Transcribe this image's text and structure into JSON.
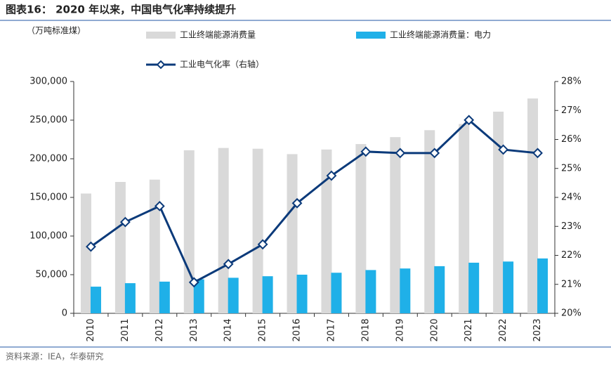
{
  "chart_data": {
    "type": "bar",
    "title": "图表16： 2020 年以来，中国电气化率持续提升",
    "y_label": "（万吨标准煤）",
    "source": "资料来源：IEA，华泰研究",
    "categories": [
      "2010",
      "2011",
      "2012",
      "2013",
      "2014",
      "2015",
      "2016",
      "2017",
      "2018",
      "2019",
      "2020",
      "2021",
      "2022",
      "2023"
    ],
    "series": [
      {
        "name": "工业终端能源消费量",
        "color": "#d9d9d9",
        "values": [
          155000,
          170000,
          173000,
          211000,
          214000,
          213000,
          206000,
          212000,
          219000,
          228000,
          237000,
          245000,
          261000,
          278000
        ]
      },
      {
        "name": "工业终端能源消费量：电力",
        "color": "#1fb0e8",
        "values": [
          34500,
          39000,
          41000,
          44000,
          46000,
          48000,
          50000,
          52500,
          56000,
          58000,
          61000,
          65500,
          67000,
          71000
        ]
      },
      {
        "name": "工业电气化率（右轴）",
        "color": "#0b3a7a",
        "axis": "y2",
        "values": [
          22.3,
          23.15,
          23.7,
          21.07,
          21.7,
          22.38,
          23.8,
          24.75,
          25.58,
          25.53,
          25.53,
          26.67,
          25.65,
          25.53
        ]
      }
    ],
    "ylim": [
      0,
      300000
    ],
    "yticks": [
      {
        "value": 0,
        "label": "0"
      },
      {
        "value": 50000,
        "label": "50,000"
      },
      {
        "value": 100000,
        "label": "100,000"
      },
      {
        "value": 150000,
        "label": "150,000"
      },
      {
        "value": 200000,
        "label": "200,000"
      },
      {
        "value": 250000,
        "label": "250,000"
      },
      {
        "value": 300000,
        "label": "300,000"
      }
    ],
    "y2lim": [
      20,
      28
    ],
    "y2ticks": [
      {
        "value": 20,
        "label": "20%"
      },
      {
        "value": 21,
        "label": "21%"
      },
      {
        "value": 22,
        "label": "22%"
      },
      {
        "value": 23,
        "label": "23%"
      },
      {
        "value": 24,
        "label": "24%"
      },
      {
        "value": 25,
        "label": "25%"
      },
      {
        "value": 26,
        "label": "26%"
      },
      {
        "value": 27,
        "label": "27%"
      },
      {
        "value": 28,
        "label": "28%"
      }
    ]
  }
}
